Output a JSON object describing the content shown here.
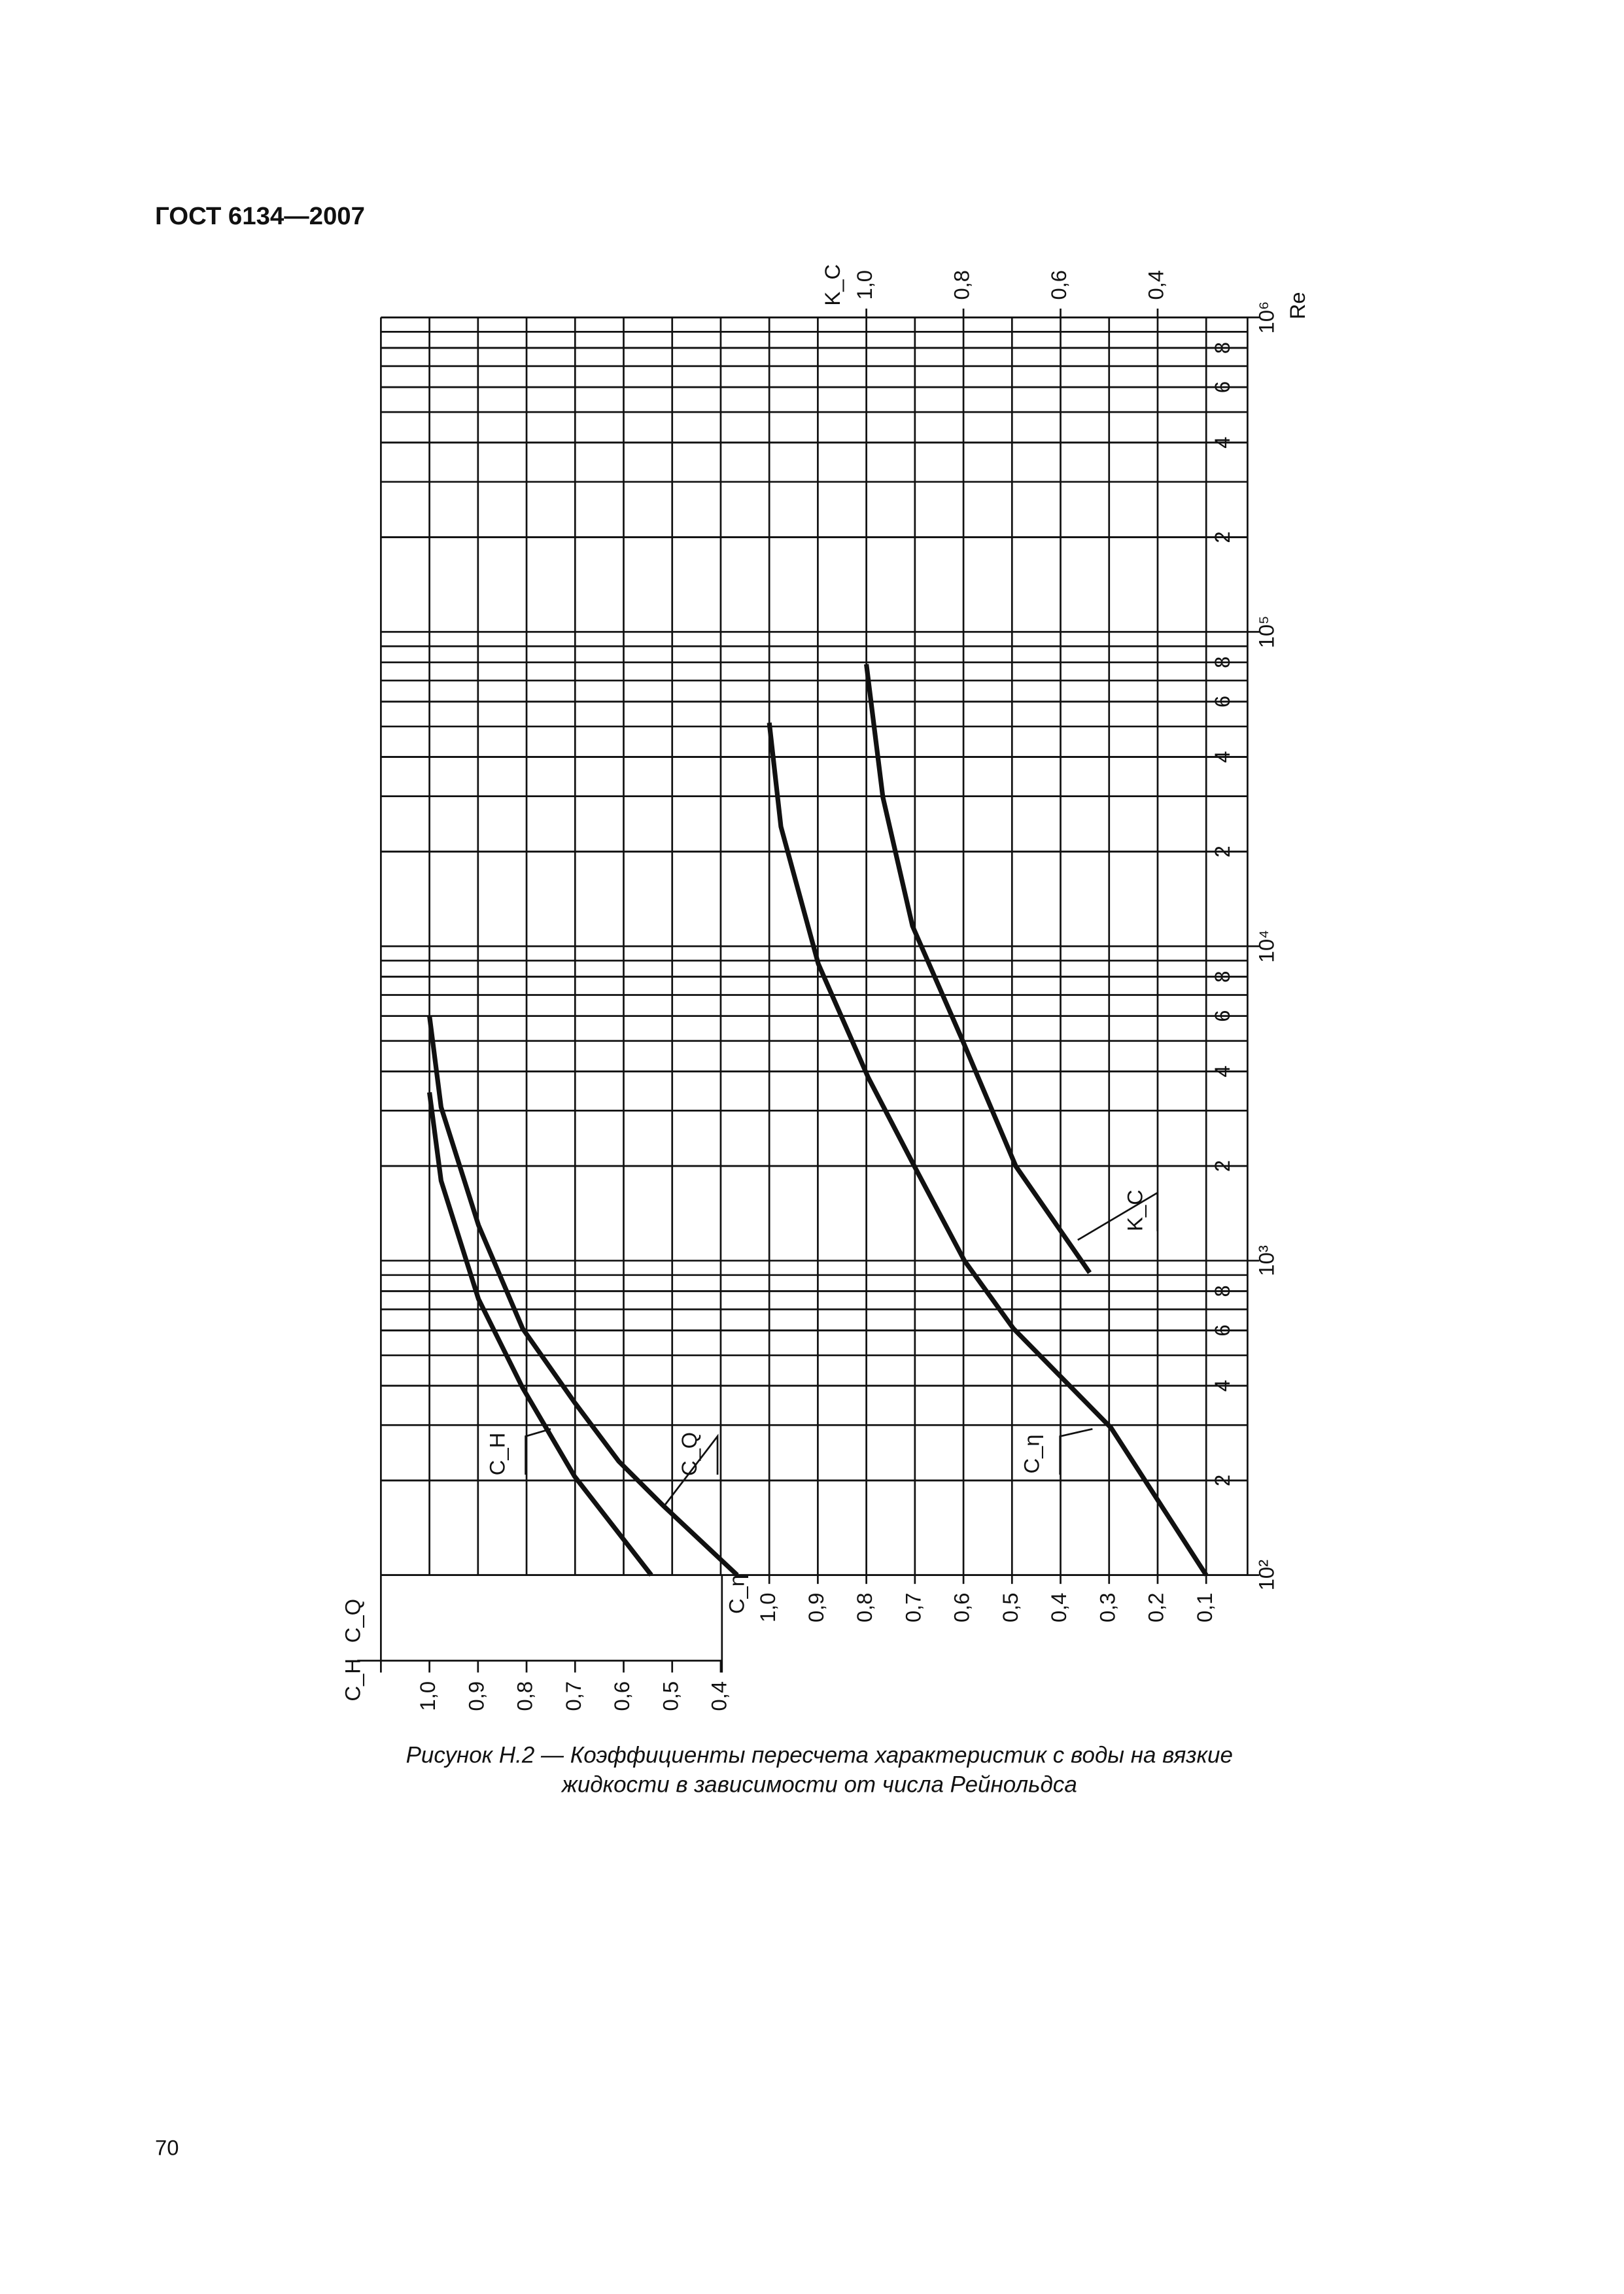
{
  "header": {
    "title": "ГОСТ 6134—2007"
  },
  "chart_data": {
    "type": "line",
    "xscale": "log",
    "xlabel": "Re",
    "xlim": [
      100,
      1000000
    ],
    "xticks": [
      {
        "value": 100,
        "label": "10²"
      },
      {
        "value": 200,
        "label": "2"
      },
      {
        "value": 400,
        "label": "4"
      },
      {
        "value": 600,
        "label": "6"
      },
      {
        "value": 800,
        "label": "8"
      },
      {
        "value": 1000,
        "label": "10³"
      },
      {
        "value": 2000,
        "label": "2"
      },
      {
        "value": 4000,
        "label": "4"
      },
      {
        "value": 6000,
        "label": "6"
      },
      {
        "value": 8000,
        "label": "8"
      },
      {
        "value": 10000,
        "label": "10⁴"
      },
      {
        "value": 20000,
        "label": "2"
      },
      {
        "value": 40000,
        "label": "4"
      },
      {
        "value": 60000,
        "label": "6"
      },
      {
        "value": 80000,
        "label": "8"
      },
      {
        "value": 100000,
        "label": "10⁵"
      },
      {
        "value": 200000,
        "label": "2"
      },
      {
        "value": 400000,
        "label": "4"
      },
      {
        "value": 600000,
        "label": "6"
      },
      {
        "value": 800000,
        "label": "8"
      },
      {
        "value": 1000000,
        "label": "10⁶"
      }
    ],
    "ylabel": "C_H",
    "ylabel2": "C_Q",
    "ylim": [
      1.1,
      -0.6
    ],
    "yticks": [
      {
        "value": 1.0,
        "label": "1,0"
      },
      {
        "value": 0.9,
        "label": "0,9"
      },
      {
        "value": 0.8,
        "label": "0,8"
      },
      {
        "value": 0.7,
        "label": "0,7"
      },
      {
        "value": 0.6,
        "label": "0,6"
      },
      {
        "value": 0.5,
        "label": "0,5"
      },
      {
        "value": 0.4,
        "label": "0,4"
      }
    ],
    "y2label": "C_η",
    "y2lim": [
      1.8,
      0.1
    ],
    "y2ticks": [
      {
        "value": 1.0,
        "label": "1,0"
      },
      {
        "value": 0.9,
        "label": "0,9"
      },
      {
        "value": 0.8,
        "label": "0,8"
      },
      {
        "value": 0.7,
        "label": "0,7"
      },
      {
        "value": 0.6,
        "label": "0,6"
      },
      {
        "value": 0.5,
        "label": "0,5"
      },
      {
        "value": 0.4,
        "label": "0,4"
      },
      {
        "value": 0.3,
        "label": "0,3"
      },
      {
        "value": 0.2,
        "label": "0,2"
      },
      {
        "value": 0.1,
        "label": "0,1"
      }
    ],
    "y3label": "K_C",
    "y3lim": [
      2.0,
      0.3
    ],
    "y3ticks": [
      {
        "value": 1.0,
        "label": "1,0"
      },
      {
        "value": 0.8,
        "label": "0,8"
      },
      {
        "value": 0.6,
        "label": "0,6"
      },
      {
        "value": 0.4,
        "label": "0,4"
      }
    ],
    "series": [
      {
        "name": "C_H",
        "color": "#111111",
        "axis": "y",
        "x": [
          100,
          206,
          394,
          755,
          1795,
          3430
        ],
        "values": [
          0.543,
          0.701,
          0.808,
          0.899,
          0.976,
          1.0
        ]
      },
      {
        "name": "C_Q",
        "color": "#111111",
        "axis": "y",
        "x": [
          100,
          166,
          230,
          354,
          608,
          1297,
          3077,
          6010
        ],
        "values": [
          0.366,
          0.518,
          0.61,
          0.701,
          0.808,
          0.899,
          0.976,
          1.0
        ]
      },
      {
        "name": "C_η",
        "color": "#111111",
        "axis": "y2",
        "x": [
          100,
          294,
          608,
          1000,
          1995,
          3820,
          8790,
          24000,
          51400
        ],
        "values": [
          0.1,
          0.296,
          0.497,
          0.598,
          0.701,
          0.796,
          0.899,
          0.976,
          1.0
        ]
      },
      {
        "name": "K_C",
        "color": "#111111",
        "axis": "y3",
        "x": [
          916,
          1995,
          5020,
          11600,
          29800,
          78900
        ],
        "values": [
          0.54,
          0.692,
          0.802,
          0.905,
          0.966,
          1.0
        ]
      }
    ]
  },
  "caption": {
    "line1": "Рисунок Н.2 — Коэффициенты пересчета характеристик с воды на вязкие",
    "line2": "жидкости в зависимости от числа Рейнольдса"
  },
  "page_number": "70"
}
